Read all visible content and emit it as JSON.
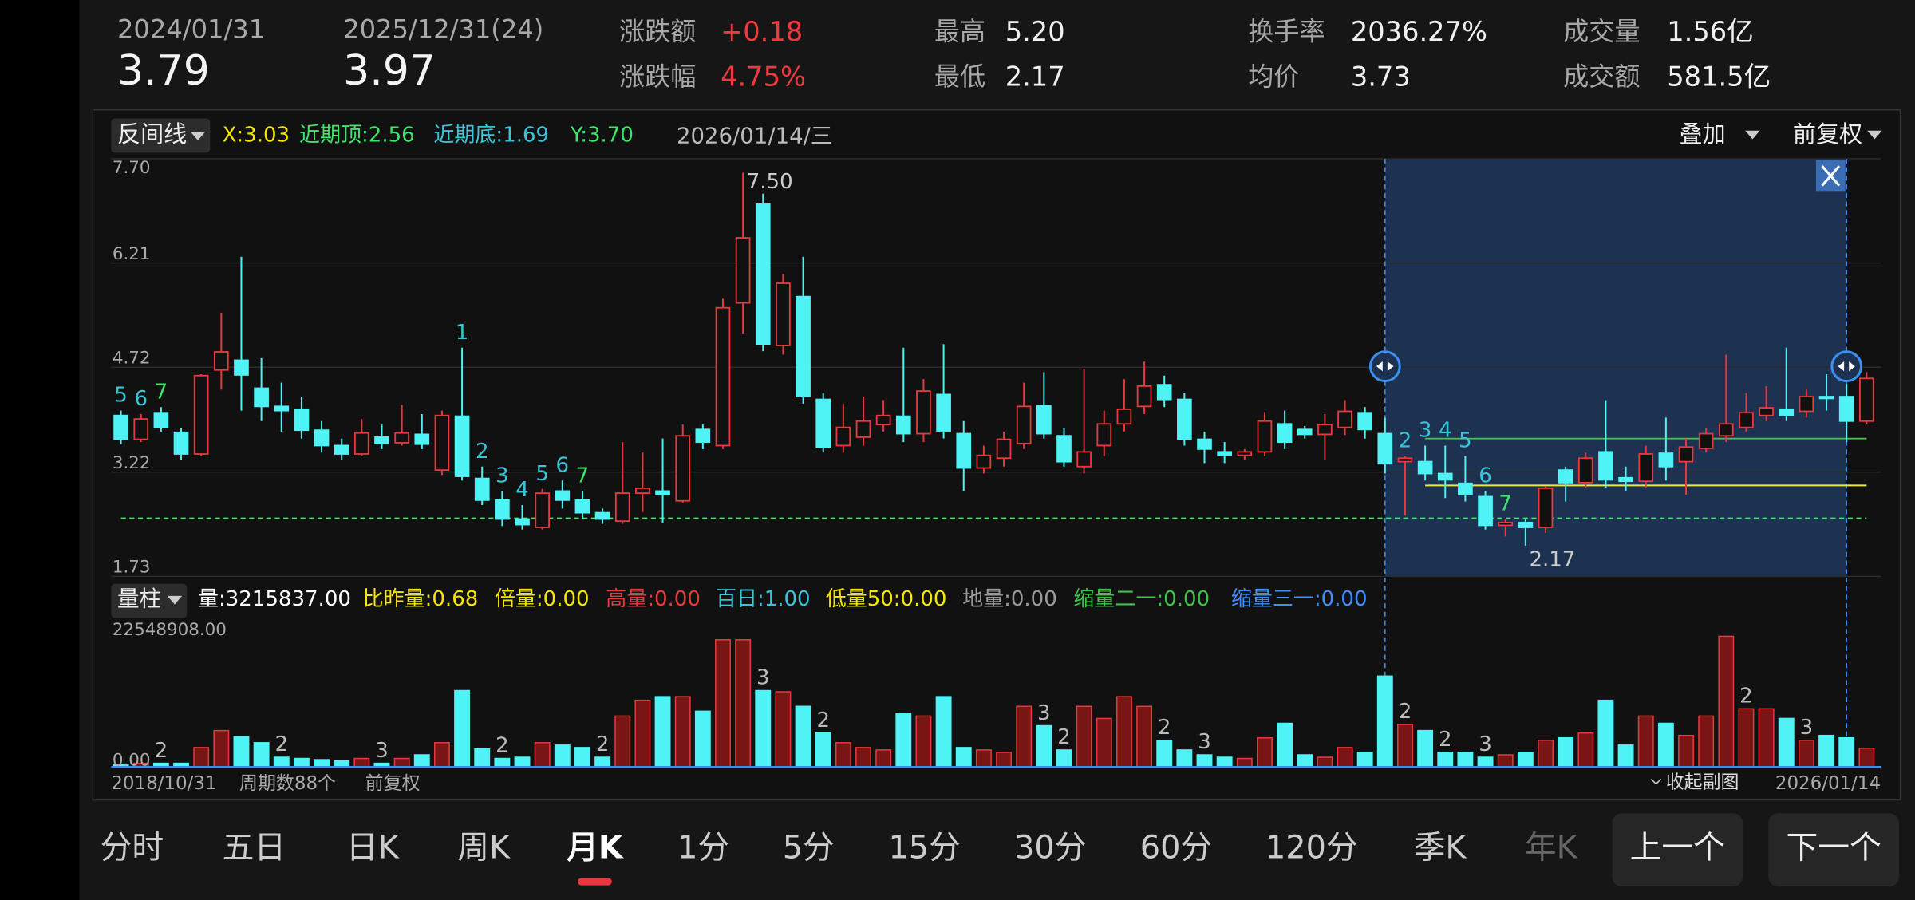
{
  "header": {
    "date_a": "2024/01/31",
    "price_a": "3.79",
    "date_b": "2025/12/31(24)",
    "price_b": "3.97",
    "change_label": "涨跌额",
    "change": "+0.18",
    "pct_label": "涨跌幅",
    "pct": "4.75%",
    "high_label": "最高",
    "high": "5.20",
    "low_label": "最低",
    "low": "2.17",
    "turnover_label": "换手率",
    "turnover": "2036.27%",
    "avg_label": "均价",
    "avg": "3.73",
    "volume_label": "成交量",
    "volume": "1.56亿",
    "amount_label": "成交额",
    "amount": "581.5亿"
  },
  "indicator_bar": {
    "name": "反间线",
    "x": "X:3.03",
    "top": "近期顶:2.56",
    "bottom": "近期底:1.69",
    "y": "Y:3.70",
    "date": "2026/01/14/三",
    "overlay": "叠加",
    "adjust": "前复权"
  },
  "volume_bar": {
    "name": "量柱",
    "items": [
      {
        "text": "量:3215837.00",
        "color": "#ffffff"
      },
      {
        "text": "比昨量:0.68",
        "color": "#f5e500"
      },
      {
        "text": "倍量:0.00",
        "color": "#f5e500"
      },
      {
        "text": "高量:0.00",
        "color": "#e8383d"
      },
      {
        "text": "百日:1.00",
        "color": "#39c5d8"
      },
      {
        "text": "低量50:0.00",
        "color": "#f5e500"
      },
      {
        "text": "地量:0.00",
        "color": "#9a9a9a"
      },
      {
        "text": "缩量二一:0.00",
        "color": "#3ec24a"
      },
      {
        "text": "缩量三一:0.00",
        "color": "#3f8fff"
      }
    ]
  },
  "footer": {
    "start": "2018/10/31",
    "periods": "周期数88个",
    "adjust": "前复权",
    "collapse": "收起副图",
    "end": "2026/01/14"
  },
  "tabs": [
    "分时",
    "五日",
    "日K",
    "周K",
    "月K",
    "1分",
    "5分",
    "15分",
    "30分",
    "60分",
    "120分",
    "季K",
    "年K"
  ],
  "active_tab": 4,
  "buttons": [
    "上一个",
    "下一个"
  ],
  "chart_data": {
    "type": "candlestick",
    "open": [
      4.03,
      3.69,
      4.07,
      3.79,
      3.48,
      4.68,
      4.82,
      4.42,
      4.16,
      4.12,
      3.82,
      3.6,
      3.48,
      3.72,
      3.64,
      3.76,
      3.25,
      4.02,
      3.13,
      2.82,
      2.55,
      2.43,
      2.95,
      2.82,
      2.64,
      2.52,
      2.92,
      2.95,
      2.81,
      3.83,
      3.6,
      5.64,
      7.05,
      5.03,
      5.73,
      4.26,
      3.6,
      3.72,
      3.9,
      4.02,
      3.77,
      4.33,
      3.77,
      3.28,
      3.42,
      3.63,
      4.17,
      3.74,
      3.3,
      3.6,
      3.91,
      4.16,
      4.47,
      4.26,
      3.69,
      3.51,
      3.46,
      3.51,
      3.91,
      3.83,
      3.76,
      3.86,
      4.07,
      3.77,
      3.37,
      3.37,
      3.2,
      3.06,
      2.87,
      2.46,
      2.5,
      2.43,
      3.25,
      3.07,
      3.51,
      3.14,
      3.09,
      3.49,
      3.37,
      3.56,
      3.74,
      3.86,
      4.03,
      4.12,
      4.09,
      4.3,
      4.3,
      3.95
    ],
    "high": [
      4.1,
      4.05,
      4.15,
      3.85,
      4.62,
      5.5,
      6.3,
      4.85,
      4.5,
      4.3,
      3.95,
      3.7,
      3.98,
      3.9,
      4.18,
      4.05,
      4.1,
      5.0,
      3.3,
      2.95,
      2.75,
      2.98,
      3.1,
      2.95,
      2.7,
      3.65,
      3.5,
      3.7,
      3.9,
      3.9,
      5.7,
      7.5,
      7.2,
      6.05,
      6.3,
      4.35,
      4.2,
      4.3,
      4.25,
      5.0,
      4.55,
      5.05,
      3.95,
      3.6,
      3.8,
      4.5,
      4.65,
      3.85,
      4.7,
      4.1,
      4.55,
      4.8,
      4.6,
      4.35,
      3.8,
      3.65,
      3.55,
      4.08,
      4.1,
      3.88,
      4.05,
      4.25,
      4.15,
      4.0,
      3.45,
      3.6,
      3.6,
      3.45,
      2.95,
      2.55,
      2.55,
      3.02,
      3.3,
      3.5,
      4.25,
      3.3,
      3.6,
      4.0,
      3.7,
      3.85,
      4.9,
      4.35,
      4.45,
      5.0,
      4.4,
      4.62,
      4.48,
      4.65
    ],
    "low": [
      3.62,
      3.65,
      3.8,
      3.4,
      3.45,
      4.4,
      4.1,
      3.95,
      3.8,
      3.7,
      3.5,
      3.4,
      3.45,
      3.55,
      3.6,
      3.55,
      3.18,
      3.1,
      2.75,
      2.45,
      2.4,
      2.4,
      2.7,
      2.55,
      2.48,
      2.48,
      2.65,
      2.5,
      2.78,
      3.55,
      3.55,
      5.2,
      4.95,
      4.9,
      4.2,
      3.5,
      3.5,
      3.6,
      3.8,
      3.65,
      3.65,
      3.7,
      2.95,
      3.2,
      3.3,
      3.55,
      3.7,
      3.3,
      3.2,
      3.45,
      3.8,
      4.05,
      4.15,
      3.6,
      3.35,
      3.35,
      3.4,
      3.45,
      3.55,
      3.7,
      3.4,
      3.75,
      3.7,
      3.2,
      2.6,
      3.1,
      2.85,
      2.8,
      2.4,
      2.3,
      2.17,
      2.35,
      2.8,
      3.0,
      3.0,
      2.95,
      3.0,
      3.1,
      2.9,
      3.5,
      3.65,
      3.8,
      3.95,
      3.95,
      4.0,
      4.1,
      3.65,
      3.9
    ],
    "close": [
      3.69,
      3.98,
      3.86,
      3.48,
      4.6,
      4.94,
      4.61,
      4.16,
      4.1,
      3.82,
      3.6,
      3.48,
      3.78,
      3.63,
      3.78,
      3.62,
      4.03,
      3.16,
      2.82,
      2.55,
      2.47,
      2.92,
      2.82,
      2.64,
      2.55,
      2.92,
      2.99,
      2.9,
      3.74,
      3.65,
      5.57,
      6.57,
      5.05,
      5.92,
      4.3,
      3.58,
      3.86,
      3.95,
      4.03,
      3.77,
      4.38,
      3.81,
      3.28,
      3.46,
      3.69,
      4.16,
      3.77,
      3.37,
      3.51,
      3.91,
      4.12,
      4.45,
      4.26,
      3.69,
      3.55,
      3.46,
      3.51,
      3.95,
      3.65,
      3.76,
      3.9,
      4.09,
      3.83,
      3.34,
      3.42,
      3.2,
      3.11,
      2.9,
      2.46,
      2.5,
      2.43,
      2.99,
      3.07,
      3.42,
      3.11,
      3.09,
      3.48,
      3.3,
      3.58,
      3.77,
      3.91,
      4.07,
      4.14,
      4.03,
      4.3,
      4.28,
      3.95,
      4.56
    ],
    "up_color": "#e8383d",
    "down_color": "#4ff2f5",
    "ylim": [
      1.73,
      7.7
    ],
    "yticks": [
      {
        "value": 1.73,
        "label": "1.73"
      },
      {
        "value": 3.22,
        "label": "3.22"
      },
      {
        "value": 4.72,
        "label": "4.72"
      },
      {
        "value": 6.21,
        "label": "6.21"
      },
      {
        "value": 7.7,
        "label": "7.70"
      }
    ],
    "grid": true,
    "annotations": [
      {
        "text": "7.50",
        "index": 31,
        "at": "high"
      },
      {
        "text": "2.17",
        "index": 70,
        "at": "low"
      }
    ],
    "td_counts": [
      {
        "text": "5",
        "index": 0,
        "color": "#39c5d8"
      },
      {
        "text": "6",
        "index": 1,
        "color": "#39c5d8"
      },
      {
        "text": "7",
        "index": 2,
        "color": "#3ee66b"
      },
      {
        "text": "1",
        "index": 17,
        "color": "#39c5d8"
      },
      {
        "text": "2",
        "index": 18,
        "color": "#39c5d8"
      },
      {
        "text": "3",
        "index": 19,
        "color": "#39c5d8"
      },
      {
        "text": "4",
        "index": 20,
        "color": "#39c5d8"
      },
      {
        "text": "5",
        "index": 21,
        "color": "#39c5d8"
      },
      {
        "text": "6",
        "index": 22,
        "color": "#39c5d8"
      },
      {
        "text": "7",
        "index": 23,
        "color": "#3ee66b"
      },
      {
        "text": "2",
        "index": 64,
        "color": "#39c5d8"
      },
      {
        "text": "3",
        "index": 65,
        "color": "#39c5d8"
      },
      {
        "text": "4",
        "index": 66,
        "color": "#39c5d8"
      },
      {
        "text": "5",
        "index": 67,
        "color": "#39c5d8"
      },
      {
        "text": "6",
        "index": 68,
        "color": "#39c5d8"
      },
      {
        "text": "7",
        "index": 69,
        "color": "#3ee66b"
      }
    ],
    "levels": [
      {
        "value": 2.56,
        "color": "#3ee66b",
        "dashed": true,
        "from": 0
      },
      {
        "value": 3.03,
        "color": "#e8e84a",
        "dashed": false,
        "from": 65
      },
      {
        "value": 3.7,
        "color": "#3ec24a",
        "dashed": false,
        "from": 65
      }
    ],
    "selection": [
      63,
      86
    ],
    "volume": {
      "values": [
        418000,
        627000,
        627000,
        627000,
        3344000,
        6270000,
        5225000,
        4180000,
        1672000,
        1463000,
        1254000,
        1045000,
        1463000,
        627000,
        1463000,
        2090000,
        4180000,
        13167000,
        3135000,
        1463000,
        1672000,
        4180000,
        3762000,
        3344000,
        1672000,
        8778000,
        11495000,
        12122000,
        12122000,
        9614000,
        21945000,
        21945000,
        13167000,
        12958000,
        10450000,
        5852000,
        4180000,
        3344000,
        2926000,
        9196000,
        8778000,
        12122000,
        3344000,
        2926000,
        2508000,
        10450000,
        7106000,
        2926000,
        10450000,
        8360000,
        12122000,
        10450000,
        4598000,
        2926000,
        2090000,
        1672000,
        1463000,
        5016000,
        7524000,
        2090000,
        1672000,
        3344000,
        2508000,
        15675000,
        7315000,
        6270000,
        2508000,
        2508000,
        1672000,
        2090000,
        2508000,
        4598000,
        5016000,
        5852000,
        11495000,
        3762000,
        8778000,
        7524000,
        5434000,
        8778000,
        22548908,
        10032000,
        10032000,
        8360000,
        4598000,
        5434000,
        5016000,
        3215837
      ],
      "ylim": [
        0,
        22548908
      ],
      "yticks": [
        {
          "value": 0,
          "label": "0.00"
        },
        {
          "value": 22548908,
          "label": "22548908.00"
        }
      ],
      "labels": [
        {
          "text": "2",
          "index": 2
        },
        {
          "text": "2",
          "index": 8
        },
        {
          "text": "3",
          "index": 13
        },
        {
          "text": "2",
          "index": 19
        },
        {
          "text": "2",
          "index": 24
        },
        {
          "text": "3",
          "index": 32
        },
        {
          "text": "2",
          "index": 35
        },
        {
          "text": "3",
          "index": 46
        },
        {
          "text": "2",
          "index": 47
        },
        {
          "text": "2",
          "index": 52
        },
        {
          "text": "3",
          "index": 54
        },
        {
          "text": "2",
          "index": 64
        },
        {
          "text": "2",
          "index": 66
        },
        {
          "text": "3",
          "index": 68
        },
        {
          "text": "2",
          "index": 81
        },
        {
          "text": "3",
          "index": 84
        }
      ]
    }
  }
}
